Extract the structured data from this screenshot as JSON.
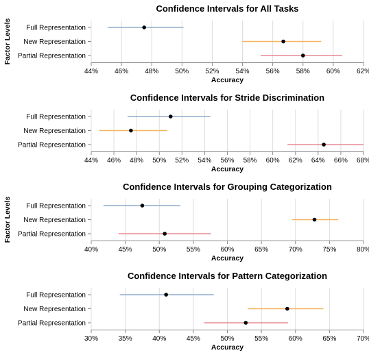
{
  "colors": {
    "Full Representation": "#8fabcc",
    "New Representation": "#f5b35c",
    "Partial Representation": "#e88a94",
    "point": "#000000",
    "grid": "#dddddd",
    "axis": "#888888"
  },
  "chart_data": [
    {
      "type": "errorbar",
      "title": "Confidence Intervals for All Tasks",
      "xlabel": "Accuracy",
      "ylabel": "Factor Levels",
      "xlim": [
        0.44,
        0.62
      ],
      "xticks": [
        0.44,
        0.46,
        0.48,
        0.5,
        0.52,
        0.54,
        0.56,
        0.58,
        0.6,
        0.62
      ],
      "xtick_labels": [
        "44%",
        "46%",
        "48%",
        "50%",
        "52%",
        "54%",
        "56%",
        "58%",
        "60%",
        "62%"
      ],
      "grid": true,
      "series": [
        {
          "name": "Full Representation",
          "mean": 0.475,
          "lower": 0.451,
          "upper": 0.501
        },
        {
          "name": "New Representation",
          "mean": 0.567,
          "lower": 0.54,
          "upper": 0.592
        },
        {
          "name": "Partial Representation",
          "mean": 0.58,
          "lower": 0.552,
          "upper": 0.606
        }
      ]
    },
    {
      "type": "errorbar",
      "title": "Confidence Intervals for Stride Discrimination",
      "xlabel": "Accuracy",
      "ylabel": "",
      "xlim": [
        0.44,
        0.68
      ],
      "xticks": [
        0.44,
        0.46,
        0.48,
        0.5,
        0.52,
        0.54,
        0.56,
        0.58,
        0.6,
        0.62,
        0.64,
        0.66,
        0.68
      ],
      "xtick_labels": [
        "44%",
        "46%",
        "48%",
        "50%",
        "52%",
        "54%",
        "56%",
        "58%",
        "60%",
        "62%",
        "64%",
        "66%",
        "68%"
      ],
      "grid": true,
      "series": [
        {
          "name": "Full Representation",
          "mean": 0.51,
          "lower": 0.472,
          "upper": 0.545
        },
        {
          "name": "New Representation",
          "mean": 0.475,
          "lower": 0.447,
          "upper": 0.507
        },
        {
          "name": "Partial Representation",
          "mean": 0.645,
          "lower": 0.613,
          "upper": 0.68
        }
      ]
    },
    {
      "type": "errorbar",
      "title": "Confidence Intervals for Grouping Categorization",
      "xlabel": "Accuracy",
      "ylabel": "Factor Levels",
      "xlim": [
        0.4,
        0.8
      ],
      "xticks": [
        0.4,
        0.45,
        0.5,
        0.55,
        0.6,
        0.65,
        0.7,
        0.75,
        0.8
      ],
      "xtick_labels": [
        "40%",
        "45%",
        "50%",
        "55%",
        "60%",
        "65%",
        "70%",
        "75%",
        "80%"
      ],
      "grid": true,
      "series": [
        {
          "name": "Full Representation",
          "mean": 0.475,
          "lower": 0.418,
          "upper": 0.531
        },
        {
          "name": "New Representation",
          "mean": 0.728,
          "lower": 0.695,
          "upper": 0.763
        },
        {
          "name": "Partial Representation",
          "mean": 0.508,
          "lower": 0.44,
          "upper": 0.576
        }
      ]
    },
    {
      "type": "errorbar",
      "title": "Confidence Intervals for Pattern Categorization",
      "xlabel": "Accuracy",
      "ylabel": "",
      "xlim": [
        0.3,
        0.7
      ],
      "xticks": [
        0.3,
        0.35,
        0.4,
        0.45,
        0.5,
        0.55,
        0.6,
        0.65,
        0.7
      ],
      "xtick_labels": [
        "30%",
        "35%",
        "40%",
        "45%",
        "50%",
        "55%",
        "60%",
        "65%",
        "70%"
      ],
      "grid": true,
      "series": [
        {
          "name": "Full Representation",
          "mean": 0.41,
          "lower": 0.342,
          "upper": 0.48
        },
        {
          "name": "New Representation",
          "mean": 0.588,
          "lower": 0.53,
          "upper": 0.641
        },
        {
          "name": "Partial Representation",
          "mean": 0.527,
          "lower": 0.466,
          "upper": 0.589
        }
      ]
    }
  ]
}
